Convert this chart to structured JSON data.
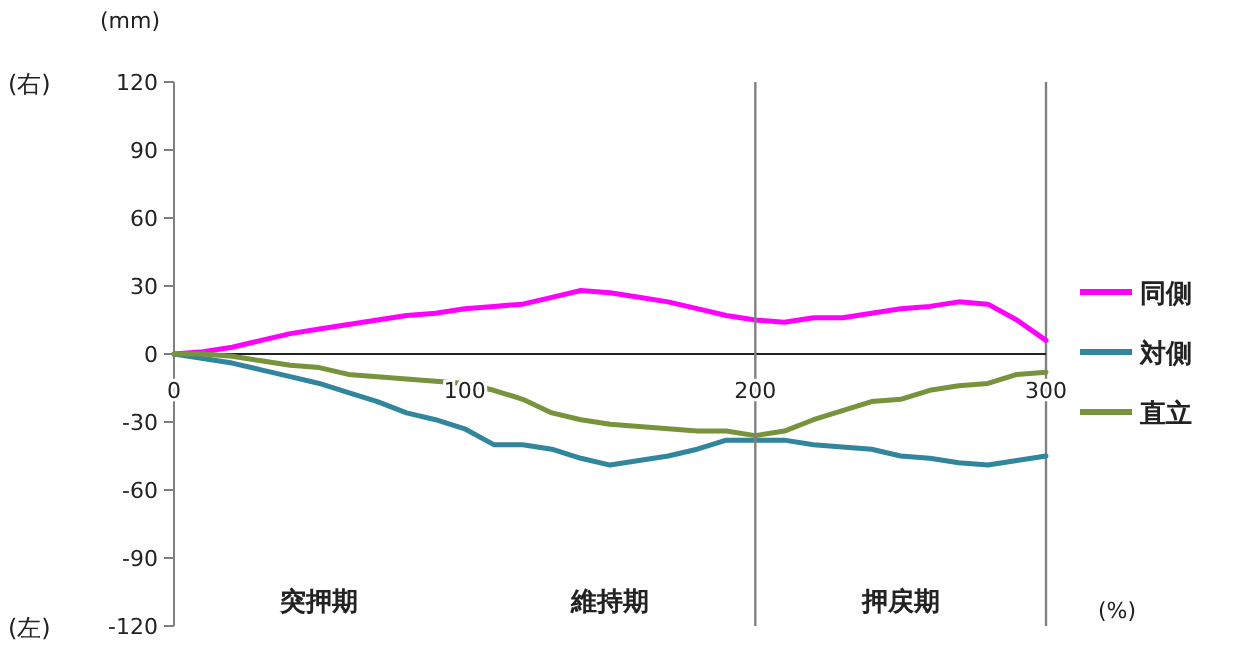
{
  "chart_data": {
    "type": "line",
    "ylabel": "(mm)",
    "xlabel": "(%)",
    "x": [
      0,
      10,
      20,
      30,
      40,
      50,
      60,
      70,
      80,
      90,
      100,
      110,
      120,
      130,
      140,
      150,
      160,
      170,
      180,
      190,
      200,
      210,
      220,
      230,
      240,
      250,
      260,
      270,
      280,
      290,
      300
    ],
    "series": [
      {
        "name": "同側",
        "color": "#ff00ff",
        "values": [
          0,
          1,
          3,
          6,
          9,
          11,
          13,
          15,
          17,
          18,
          20,
          21,
          22,
          25,
          28,
          27,
          25,
          23,
          20,
          17,
          15,
          14,
          16,
          16,
          18,
          20,
          21,
          23,
          22,
          15,
          6
        ]
      },
      {
        "name": "対側",
        "color": "#31859c",
        "values": [
          0,
          -2,
          -4,
          -7,
          -10,
          -13,
          -17,
          -21,
          -26,
          -29,
          -33,
          -40,
          -40,
          -42,
          -46,
          -49,
          -47,
          -45,
          -42,
          -38,
          -38,
          -38,
          -40,
          -41,
          -42,
          -45,
          -46,
          -48,
          -49,
          -47,
          -45
        ]
      },
      {
        "name": "直立",
        "color": "#77933c",
        "values": [
          0,
          0,
          -1,
          -3,
          -5,
          -6,
          -9,
          -10,
          -11,
          -12,
          -13,
          -16,
          -20,
          -26,
          -29,
          -31,
          -32,
          -33,
          -34,
          -34,
          -36,
          -34,
          -29,
          -25,
          -21,
          -20,
          -16,
          -14,
          -13,
          -9,
          -8
        ]
      }
    ],
    "xlim": [
      0,
      300
    ],
    "xticks": [
      0,
      100,
      200,
      300
    ],
    "ylim": [
      -120,
      120
    ],
    "yticks": [
      -120,
      -90,
      -60,
      -30,
      0,
      30,
      60,
      90,
      120
    ],
    "ref_lines": [
      {
        "axis": "x",
        "value": 200,
        "color": "#808080"
      }
    ],
    "annotations": [
      "(右)",
      "(左)",
      "突押期",
      "維持期",
      "押戻期"
    ],
    "legend": "right",
    "grid": false,
    "marker": "none",
    "line_style": "solid"
  }
}
